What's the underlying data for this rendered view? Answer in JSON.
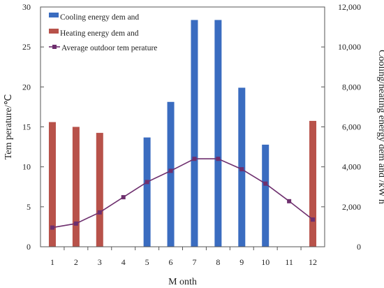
{
  "chart_data": {
    "type": "bar+line",
    "categories": [
      "1",
      "2",
      "3",
      "4",
      "5",
      "6",
      "7",
      "8",
      "9",
      "10",
      "11",
      "12"
    ],
    "series": [
      {
        "name": "Cooling energy dem and",
        "kind": "bar",
        "axis": "right",
        "color": "#3a6cc0",
        "values": [
          0,
          0,
          0,
          0,
          5470,
          7250,
          11350,
          11350,
          7960,
          5110,
          0,
          0
        ]
      },
      {
        "name": "Heating energy dem and",
        "kind": "bar",
        "axis": "right",
        "color": "#b8524a",
        "values": [
          6240,
          6000,
          5700,
          0,
          0,
          0,
          0,
          0,
          0,
          0,
          0,
          6300
        ]
      },
      {
        "name": "Average outdoor tem perature",
        "kind": "line",
        "axis": "left",
        "color": "#6e2f6e",
        "values": [
          2.4,
          2.9,
          4.3,
          6.2,
          8.1,
          9.5,
          11.0,
          11.0,
          9.7,
          7.9,
          5.7,
          3.4
        ]
      }
    ],
    "xlabel": "M onth",
    "ylabel_left": "Tem perature/℃",
    "ylabel_right": "Cooling/heating energy dem and /kW h",
    "ylim_left": [
      0,
      30
    ],
    "yticks_left": [
      "0",
      "5",
      "10",
      "15",
      "20",
      "25",
      "30"
    ],
    "ylim_right": [
      0,
      12000
    ],
    "yticks_right": [
      "0",
      "2,000",
      "4,000",
      "6,000",
      "8,000",
      "10,000",
      "12,000"
    ],
    "grid": false,
    "legend_position": "top-left"
  }
}
